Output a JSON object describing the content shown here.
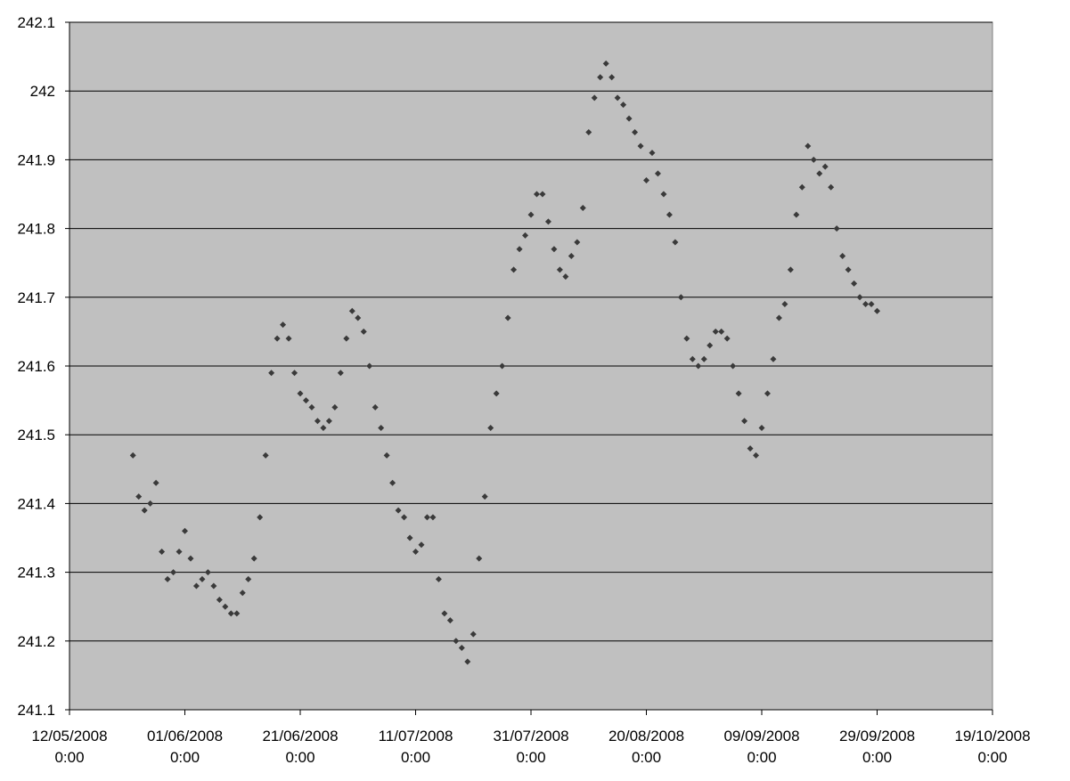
{
  "chart_data": {
    "type": "scatter",
    "xlim": [
      "2008-05-12",
      "2008-10-19"
    ],
    "xticks": [
      {
        "value": "2008-05-12",
        "label": "12/05/2008\n0:00"
      },
      {
        "value": "2008-06-01",
        "label": "01/06/2008\n0:00"
      },
      {
        "value": "2008-06-21",
        "label": "21/06/2008\n0:00"
      },
      {
        "value": "2008-07-11",
        "label": "11/07/2008\n0:00"
      },
      {
        "value": "2008-07-31",
        "label": "31/07/2008\n0:00"
      },
      {
        "value": "2008-08-20",
        "label": "20/08/2008\n0:00"
      },
      {
        "value": "2008-09-09",
        "label": "09/09/2008\n0:00"
      },
      {
        "value": "2008-09-29",
        "label": "29/09/2008\n0:00"
      },
      {
        "value": "2008-10-19",
        "label": "19/10/2008\n0:00"
      }
    ],
    "ylim": [
      241.1,
      242.1
    ],
    "yticks": [
      241.1,
      241.2,
      241.3,
      241.4,
      241.5,
      241.6,
      241.7,
      241.8,
      241.9,
      242,
      242.1
    ],
    "grid": true,
    "series": [
      {
        "color": "#3a3a3a",
        "x": [
          "2008-05-23",
          "2008-05-24",
          "2008-05-25",
          "2008-05-26",
          "2008-05-27",
          "2008-05-28",
          "2008-05-29",
          "2008-05-30",
          "2008-05-31",
          "2008-06-01",
          "2008-06-02",
          "2008-06-03",
          "2008-06-04",
          "2008-06-05",
          "2008-06-06",
          "2008-06-07",
          "2008-06-08",
          "2008-06-09",
          "2008-06-10",
          "2008-06-11",
          "2008-06-12",
          "2008-06-13",
          "2008-06-14",
          "2008-06-15",
          "2008-06-16",
          "2008-06-17",
          "2008-06-18",
          "2008-06-19",
          "2008-06-20",
          "2008-06-21",
          "2008-06-22",
          "2008-06-23",
          "2008-06-24",
          "2008-06-25",
          "2008-06-26",
          "2008-06-27",
          "2008-06-28",
          "2008-06-29",
          "2008-06-30",
          "2008-07-01",
          "2008-07-02",
          "2008-07-03",
          "2008-07-04",
          "2008-07-05",
          "2008-07-06",
          "2008-07-07",
          "2008-07-08",
          "2008-07-09",
          "2008-07-10",
          "2008-07-11",
          "2008-07-12",
          "2008-07-13",
          "2008-07-14",
          "2008-07-15",
          "2008-07-16",
          "2008-07-17",
          "2008-07-18",
          "2008-07-19",
          "2008-07-20",
          "2008-07-21",
          "2008-07-22",
          "2008-07-23",
          "2008-07-24",
          "2008-07-25",
          "2008-07-26",
          "2008-07-27",
          "2008-07-28",
          "2008-07-29",
          "2008-07-30",
          "2008-07-31",
          "2008-08-01",
          "2008-08-02",
          "2008-08-03",
          "2008-08-04",
          "2008-08-05",
          "2008-08-06",
          "2008-08-07",
          "2008-08-08",
          "2008-08-09",
          "2008-08-10",
          "2008-08-11",
          "2008-08-12",
          "2008-08-13",
          "2008-08-14",
          "2008-08-15",
          "2008-08-16",
          "2008-08-17",
          "2008-08-18",
          "2008-08-19",
          "2008-08-20",
          "2008-08-21",
          "2008-08-22",
          "2008-08-23",
          "2008-08-24",
          "2008-08-25",
          "2008-08-26",
          "2008-08-27",
          "2008-08-28",
          "2008-08-29",
          "2008-08-30",
          "2008-08-31",
          "2008-09-01",
          "2008-09-02",
          "2008-09-03",
          "2008-09-04",
          "2008-09-05",
          "2008-09-06",
          "2008-09-07",
          "2008-09-08",
          "2008-09-09",
          "2008-09-10",
          "2008-09-11",
          "2008-09-12",
          "2008-09-13",
          "2008-09-14",
          "2008-09-15",
          "2008-09-16",
          "2008-09-17",
          "2008-09-18",
          "2008-09-19",
          "2008-09-20",
          "2008-09-21",
          "2008-09-22",
          "2008-09-23",
          "2008-09-24",
          "2008-09-25",
          "2008-09-26",
          "2008-09-27",
          "2008-09-28",
          "2008-09-29"
        ],
        "values": [
          241.47,
          241.41,
          241.39,
          241.4,
          241.43,
          241.33,
          241.29,
          241.3,
          241.33,
          241.36,
          241.32,
          241.28,
          241.29,
          241.3,
          241.28,
          241.26,
          241.25,
          241.24,
          241.24,
          241.27,
          241.29,
          241.32,
          241.38,
          241.47,
          241.59,
          241.64,
          241.66,
          241.64,
          241.59,
          241.56,
          241.55,
          241.54,
          241.52,
          241.51,
          241.52,
          241.54,
          241.59,
          241.64,
          241.68,
          241.67,
          241.65,
          241.6,
          241.54,
          241.51,
          241.47,
          241.43,
          241.39,
          241.38,
          241.35,
          241.33,
          241.34,
          241.38,
          241.38,
          241.29,
          241.24,
          241.23,
          241.2,
          241.19,
          241.17,
          241.21,
          241.32,
          241.41,
          241.51,
          241.56,
          241.6,
          241.67,
          241.74,
          241.77,
          241.79,
          241.82,
          241.85,
          241.85,
          241.81,
          241.77,
          241.74,
          241.73,
          241.76,
          241.78,
          241.83,
          241.94,
          241.99,
          242.02,
          242.04,
          242.02,
          241.99,
          241.98,
          241.96,
          241.94,
          241.92,
          241.87,
          241.91,
          241.88,
          241.85,
          241.82,
          241.78,
          241.7,
          241.64,
          241.61,
          241.6,
          241.61,
          241.63,
          241.65,
          241.65,
          241.64,
          241.6,
          241.56,
          241.52,
          241.48,
          241.47,
          241.51,
          241.56,
          241.61,
          241.67,
          241.69,
          241.74,
          241.82,
          241.86,
          241.92,
          241.9,
          241.88,
          241.89,
          241.86,
          241.8,
          241.76,
          241.74,
          241.72,
          241.7,
          241.69,
          241.69,
          241.68
        ]
      }
    ]
  }
}
